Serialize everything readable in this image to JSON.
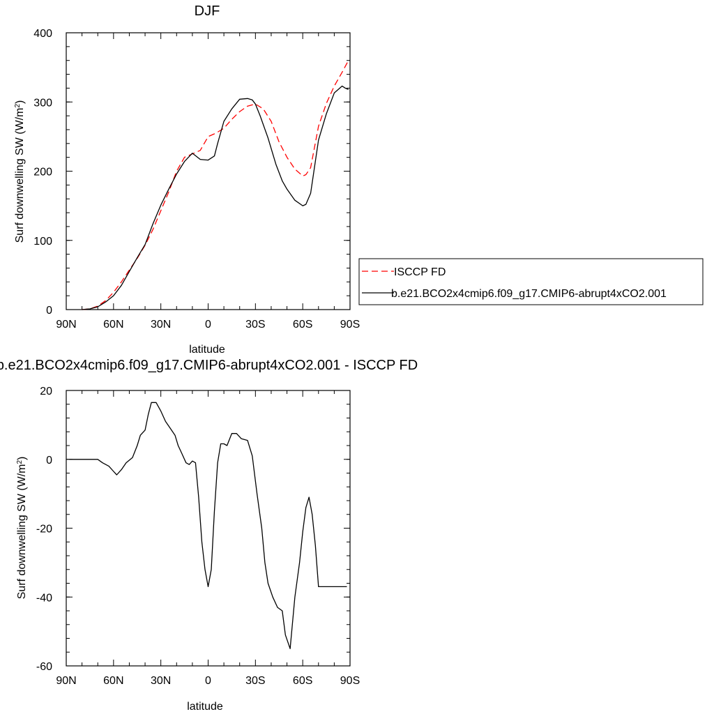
{
  "chart_data": [
    {
      "type": "line",
      "title": "DJF",
      "xlabel": "latitude",
      "ylabel": "Surf downwelling SW (W/m",
      "ylabel_superscript": "2",
      "ylabel_suffix": ")",
      "xlim": [
        -90,
        90
      ],
      "ylim": [
        0,
        400
      ],
      "xticks": [
        -90,
        -60,
        -30,
        0,
        30,
        60,
        90
      ],
      "xtick_labels": [
        "90N",
        "60N",
        "30N",
        "0",
        "30S",
        "60S",
        "90S"
      ],
      "yticks": [
        0,
        100,
        200,
        300,
        400
      ],
      "ytick_labels": [
        "0",
        "100",
        "200",
        "300",
        "400"
      ],
      "legend": {
        "placement": "right"
      },
      "series": [
        {
          "name": "ISCCP FD",
          "color": "#ff0000",
          "dash": "dashed",
          "x": [
            -80,
            -75,
            -70,
            -65,
            -60,
            -55,
            -50,
            -45,
            -40,
            -35,
            -30,
            -25,
            -20,
            -15,
            -10,
            -5,
            0,
            5,
            10,
            15,
            20,
            25,
            30,
            35,
            40,
            45,
            50,
            55,
            60,
            62,
            65,
            70,
            75,
            80,
            85,
            89
          ],
          "y": [
            0,
            1,
            5,
            13,
            25,
            40,
            57,
            74,
            93,
            116,
            143,
            170,
            200,
            220,
            225,
            230,
            250,
            255,
            262,
            275,
            286,
            294,
            297,
            290,
            272,
            242,
            220,
            203,
            193,
            195,
            205,
            265,
            298,
            323,
            343,
            360
          ]
        },
        {
          "name": "b.e21.BCO2x4cmip6.f09_g17.CMIP6-abrupt4xCO2.001",
          "color": "#000000",
          "dash": "solid",
          "x": [
            -80,
            -75,
            -70,
            -65,
            -60,
            -55,
            -50,
            -45,
            -40,
            -35,
            -30,
            -25,
            -20,
            -15,
            -10,
            -5,
            0,
            4,
            6,
            10,
            15,
            20,
            25,
            28,
            30,
            33,
            38,
            43,
            47,
            50,
            55,
            60,
            62,
            65,
            70,
            75,
            80,
            85,
            87,
            89
          ],
          "y": [
            0,
            1,
            4,
            11,
            20,
            35,
            55,
            75,
            94,
            124,
            151,
            174,
            196,
            214,
            226,
            217,
            216,
            222,
            240,
            272,
            290,
            304,
            305,
            303,
            297,
            280,
            248,
            210,
            186,
            174,
            158,
            150,
            152,
            168,
            245,
            283,
            313,
            323,
            320,
            318
          ]
        }
      ]
    },
    {
      "type": "line",
      "title": "b.e21.BCO2x4cmip6.f09_g17.CMIP6-abrupt4xCO2.001 - ISCCP FD",
      "xlabel": "latitude",
      "ylabel": "Surf downwelling SW (W/m",
      "ylabel_superscript": "2",
      "ylabel_suffix": ")",
      "xlim": [
        -90,
        90
      ],
      "ylim": [
        -60,
        20
      ],
      "xticks": [
        -90,
        -60,
        -30,
        0,
        30,
        60,
        90
      ],
      "xtick_labels": [
        "90N",
        "60N",
        "30N",
        "0",
        "30S",
        "60S",
        "90S"
      ],
      "yticks": [
        -60,
        -40,
        -20,
        0,
        20
      ],
      "ytick_labels": [
        "-60",
        "-40",
        "-20",
        "0",
        "20"
      ],
      "series": [
        {
          "color": "#000000",
          "dash": "solid",
          "x": [
            -88,
            -80,
            -75,
            -70,
            -67,
            -63,
            -60,
            -58,
            -55,
            -52,
            -48,
            -45,
            -43,
            -40,
            -38,
            -36,
            -33,
            -30,
            -27,
            -24,
            -21,
            -19,
            -17,
            -14,
            -12,
            -10,
            -8,
            -6,
            -4,
            -2,
            0,
            2,
            4,
            6,
            8,
            10,
            12,
            15,
            18,
            21,
            25,
            28,
            31,
            34,
            36,
            38,
            41,
            44,
            47,
            49,
            52,
            55,
            58,
            60,
            62,
            64,
            66,
            68,
            70,
            74,
            77,
            80,
            82,
            84,
            86,
            88
          ],
          "y": [
            0,
            0,
            0,
            0,
            -1,
            -2,
            -3.5,
            -4.5,
            -3,
            -1,
            0.5,
            4,
            7,
            8.5,
            13,
            16.5,
            16.5,
            14,
            11,
            9,
            7,
            4,
            2,
            -1,
            -1.5,
            -0.5,
            -1,
            -11,
            -24,
            -32,
            -37,
            -32,
            -15,
            -1,
            4.5,
            4.5,
            4,
            7.5,
            7.5,
            6,
            5.5,
            1,
            -10,
            -20,
            -30,
            -36,
            -40,
            -43,
            -44,
            -51,
            -55,
            -40,
            -30,
            -21,
            -14,
            -11,
            -16,
            -25,
            -37,
            -37,
            -37,
            -37,
            -37,
            -37,
            -37,
            -37
          ]
        }
      ]
    }
  ]
}
